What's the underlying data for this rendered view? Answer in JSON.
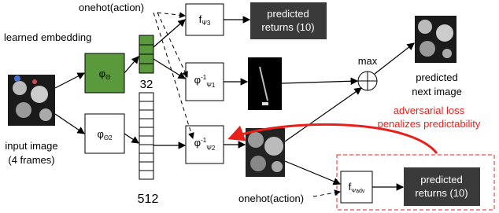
{
  "labels": {
    "onehot_top": "onehot(action)",
    "learned_embedding": "learned embedding",
    "input_image": "input image",
    "input_frames": "(4 frames)",
    "dim_small": "32",
    "dim_large": "512",
    "max": "max",
    "next_image_1": "predicted",
    "next_image_2": "next image",
    "adversarial_1": "adversarial loss",
    "adversarial_2": "penalizes predictability",
    "onehot_bottom": "onehot(action)"
  },
  "nodes": [
    {
      "main": "φ",
      "sub": "Θ"
    },
    {
      "main": "φ",
      "sub": "Θ2"
    },
    {
      "main": "f",
      "sub": "Ψ3"
    },
    {
      "main": "φ",
      "sup": "-1",
      "sub": "Ψ1"
    },
    {
      "main": "φ",
      "sup": "-1",
      "sub": "Ψ2"
    },
    {
      "line1": "predicted",
      "line2": "returns (10)"
    },
    {
      "main": "f",
      "sub": "Ψadv"
    },
    {
      "line1": "predicted",
      "line2": "returns (10)"
    }
  ]
}
